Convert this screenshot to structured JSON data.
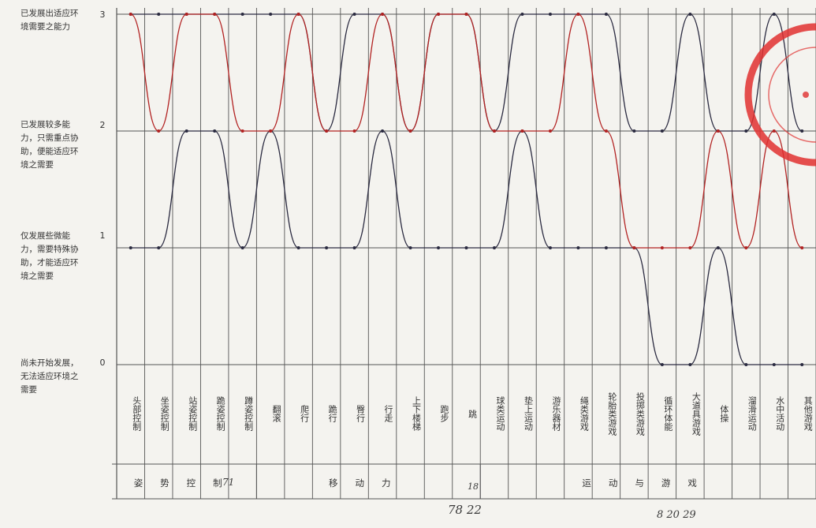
{
  "chart_data": {
    "type": "line",
    "title": "",
    "xlabel": "",
    "ylabel": "",
    "ylim": [
      0,
      3
    ],
    "y_ticks": [
      "0",
      "1",
      "2",
      "3"
    ],
    "level_labels": [
      "尚未开始发展，无法适应环境之需要",
      "仅发展些微能力，需要特殊协助，才能适应环境之需要",
      "已发展较多能力，只需重点协助，便能适应环境之需要",
      "已发展出适应环境需要之能力"
    ],
    "categories": [
      "头部控制",
      "坐姿控制",
      "站姿控制",
      "跪姿控制",
      "蹲姿控制",
      "翻滚",
      "爬行",
      "跪行",
      "臀行",
      "行走",
      "上下楼梯",
      "跑步",
      "跳",
      "球类运动",
      "垫上运动",
      "游乐器材",
      "绳类游戏",
      "轮胎类游戏",
      "投掷类游戏",
      "循环体能",
      "大道具游戏",
      "体操",
      "溜滑运动",
      "水中活动",
      "其他游戏"
    ],
    "groups": [
      {
        "label": "姿势控制",
        "span": [
          0,
          4
        ]
      },
      {
        "label": "移动力",
        "span": [
          5,
          12
        ]
      },
      {
        "label": "运动与游戏",
        "span": [
          13,
          24
        ]
      }
    ],
    "series": [
      {
        "color": "#2a2a40",
        "values": [
          1,
          1,
          2,
          2,
          1,
          2,
          1,
          1,
          1,
          2,
          1,
          1,
          1,
          1,
          2,
          1,
          1,
          1,
          1,
          0,
          0,
          1,
          0,
          0,
          0
        ]
      },
      {
        "color": "#2a2a40",
        "values": [
          3,
          3,
          3,
          3,
          3,
          3,
          3,
          2,
          3,
          3,
          2,
          3,
          3,
          2,
          3,
          3,
          3,
          3,
          2,
          2,
          3,
          2,
          2,
          3,
          2
        ]
      },
      {
        "color": "#b22222",
        "values": [
          3,
          2,
          3,
          3,
          2,
          2,
          3,
          2,
          2,
          3,
          2,
          3,
          3,
          2,
          2,
          2,
          3,
          2,
          1,
          1,
          1,
          2,
          1,
          2,
          1
        ]
      }
    ]
  },
  "annotations": {
    "left_mark": "71",
    "middle_mark": "18",
    "bottom_center": "78 22",
    "bottom_right": "8  20  29"
  },
  "stamp": {
    "color": "#e03030"
  }
}
